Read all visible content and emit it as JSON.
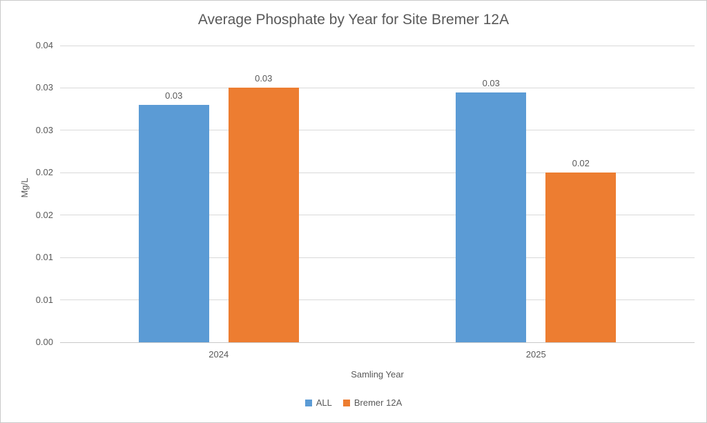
{
  "chart_data": {
    "type": "bar",
    "title": "Average Phosphate by Year for Site Bremer 12A",
    "xlabel": "Samling Year",
    "ylabel": "Mg/L",
    "categories": [
      "2024",
      "2025"
    ],
    "series": [
      {
        "name": "ALL",
        "color": "#5B9BD5",
        "values": [
          0.028,
          0.0295
        ],
        "labels": [
          "0.03",
          "0.03"
        ]
      },
      {
        "name": "Bremer 12A",
        "color": "#ED7D31",
        "values": [
          0.03,
          0.02
        ],
        "labels": [
          "0.03",
          "0.02"
        ]
      }
    ],
    "ylim": [
      0,
      0.035
    ],
    "ytick_step": 0.005,
    "ytick_labels": [
      "0.00",
      "0.01",
      "0.01",
      "0.02",
      "0.02",
      "0.03",
      "0.03",
      "0.04"
    ],
    "grid": true,
    "legend_position": "bottom",
    "text_color": "#595959",
    "gridline_color": "#d9d9d9"
  }
}
